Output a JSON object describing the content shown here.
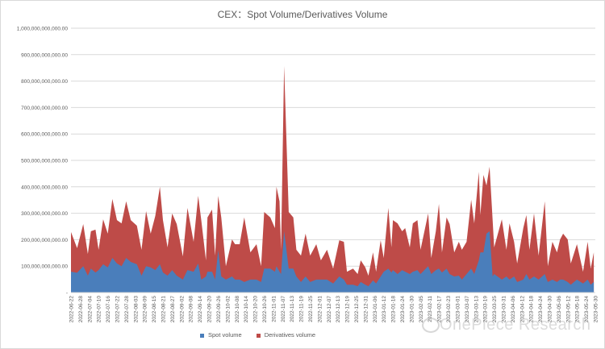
{
  "chart_data": {
    "type": "area",
    "stacked": true,
    "title": "CEX：Spot Volume/Derivatives Volume",
    "xlabel": "",
    "ylabel": "",
    "ylim": [
      0,
      1000000000000
    ],
    "grid": true,
    "legend_position": "bottom",
    "y_ticks": [
      "-",
      "100,000,000,000.00",
      "200,000,000,000.00",
      "300,000,000,000.00",
      "400,000,000,000.00",
      "500,000,000,000.00",
      "600,000,000,000.00",
      "700,000,000,000.00",
      "800,000,000,000.00",
      "900,000,000,000.00",
      "1,000,000,000,000.00"
    ],
    "x_ticks": [
      "2022-06-22",
      "2022-06-28",
      "2022-07-04",
      "2022-07-10",
      "2022-07-16",
      "2022-07-22",
      "2022-07-28",
      "2022-08-03",
      "2022-08-09",
      "2022-08-15",
      "2022-08-21",
      "2022-08-27",
      "2022-09-02",
      "2022-09-08",
      "2022-09-14",
      "2022-09-20",
      "2022-09-26",
      "2022-10-02",
      "2022-10-08",
      "2022-10-14",
      "2022-10-20",
      "2022-10-26",
      "2022-11-01",
      "2022-11-07",
      "2022-11-13",
      "2022-11-19",
      "2022-11-25",
      "2022-12-01",
      "2022-12-07",
      "2022-12-13",
      "2022-12-19",
      "2022-12-25",
      "2022-12-31",
      "2023-01-06",
      "2023-01-12",
      "2023-01-18",
      "2023-01-24",
      "2023-01-30",
      "2023-02-05",
      "2023-02-11",
      "2023-02-17",
      "2023-02-23",
      "2023-03-01",
      "2023-03-07",
      "2023-03-13",
      "2023-03-19",
      "2023-03-25",
      "2023-03-31",
      "2023-04-06",
      "2023-04-12",
      "2023-04-18",
      "2023-04-24",
      "2023-04-30",
      "2023-05-06",
      "2023-05-12",
      "2023-05-18",
      "2023-05-24",
      "2023-05-30"
    ],
    "x": [
      "2022-06-22",
      "2022-06-26",
      "2022-06-30",
      "2022-07-03",
      "2022-07-05",
      "2022-07-08",
      "2022-07-10",
      "2022-07-13",
      "2022-07-16",
      "2022-07-19",
      "2022-07-22",
      "2022-07-25",
      "2022-07-28",
      "2022-07-31",
      "2022-08-04",
      "2022-08-07",
      "2022-08-10",
      "2022-08-13",
      "2022-08-16",
      "2022-08-19",
      "2022-08-21",
      "2022-08-24",
      "2022-08-27",
      "2022-08-30",
      "2022-09-03",
      "2022-09-06",
      "2022-09-10",
      "2022-09-13",
      "2022-09-15",
      "2022-09-18",
      "2022-09-19",
      "2022-09-22",
      "2022-09-24",
      "2022-09-26",
      "2022-09-28",
      "2022-10-01",
      "2022-10-05",
      "2022-10-07",
      "2022-10-10",
      "2022-10-13",
      "2022-10-17",
      "2022-10-21",
      "2022-10-24",
      "2022-10-26",
      "2022-10-30",
      "2022-11-02",
      "2022-11-03",
      "2022-11-05",
      "2022-11-06",
      "2022-11-08",
      "2022-11-11",
      "2022-11-14",
      "2022-11-16",
      "2022-11-19",
      "2022-11-22",
      "2022-11-25",
      "2022-11-29",
      "2022-12-02",
      "2022-12-06",
      "2022-12-10",
      "2022-12-14",
      "2022-12-17",
      "2022-12-19",
      "2022-12-23",
      "2022-12-26",
      "2022-12-28",
      "2022-12-31",
      "2023-01-02",
      "2023-01-05",
      "2023-01-07",
      "2023-01-10",
      "2023-01-12",
      "2023-01-15",
      "2023-01-17",
      "2023-01-18",
      "2023-01-21",
      "2023-01-24",
      "2023-01-26",
      "2023-01-29",
      "2023-01-31",
      "2023-02-03",
      "2023-02-05",
      "2023-02-10",
      "2023-02-12",
      "2023-02-15",
      "2023-02-17",
      "2023-02-19",
      "2023-02-22",
      "2023-02-24",
      "2023-02-27",
      "2023-03-02",
      "2023-03-04",
      "2023-03-07",
      "2023-03-10",
      "2023-03-12",
      "2023-03-15",
      "2023-03-16",
      "2023-03-18",
      "2023-03-20",
      "2023-03-22",
      "2023-03-24",
      "2023-03-25",
      "2023-03-30",
      "2023-04-02",
      "2023-04-04",
      "2023-04-07",
      "2023-04-09",
      "2023-04-13",
      "2023-04-15",
      "2023-04-17",
      "2023-04-20",
      "2023-04-23",
      "2023-04-27",
      "2023-04-29",
      "2023-05-02",
      "2023-05-05",
      "2023-05-07",
      "2023-05-09",
      "2023-05-12",
      "2023-05-14",
      "2023-05-18",
      "2023-05-22",
      "2023-05-25",
      "2023-05-27",
      "2023-05-29"
    ],
    "series": [
      {
        "name": "Spot volume",
        "color": "#4a7ebb",
        "values": [
          79000000000.0,
          75000000000.0,
          100000000000.0,
          64000000000.0,
          91000000000.0,
          76000000000.0,
          85000000000.0,
          107000000000.0,
          95000000000.0,
          131000000000.0,
          110000000000.0,
          100000000000.0,
          131000000000.0,
          116000000000.0,
          107000000000.0,
          64000000000.0,
          100000000000.0,
          95000000000.0,
          85000000000.0,
          107000000000.0,
          76000000000.0,
          64000000000.0,
          85000000000.0,
          64000000000.0,
          49000000000.0,
          85000000000.0,
          79000000000.0,
          110000000000.0,
          49000000000.0,
          61000000000.0,
          79000000000.0,
          79000000000.0,
          49000000000.0,
          160000000000.0,
          61000000000.0,
          49000000000.0,
          61000000000.0,
          49000000000.0,
          49000000000.0,
          40000000000.0,
          49000000000.0,
          49000000000.0,
          40000000000.0,
          91000000000.0,
          91000000000.0,
          79000000000.0,
          100000000000.0,
          79000000000.0,
          70000000000.0,
          232000000000.0,
          91000000000.0,
          91000000000.0,
          61000000000.0,
          40000000000.0,
          61000000000.0,
          40000000000.0,
          49000000000.0,
          49000000000.0,
          49000000000.0,
          34000000000.0,
          61000000000.0,
          49000000000.0,
          30000000000.0,
          30000000000.0,
          24000000000.0,
          40000000000.0,
          30000000000.0,
          24000000000.0,
          46000000000.0,
          34000000000.0,
          61000000000.0,
          79000000000.0,
          91000000000.0,
          76000000000.0,
          85000000000.0,
          70000000000.0,
          85000000000.0,
          79000000000.0,
          70000000000.0,
          79000000000.0,
          85000000000.0,
          70000000000.0,
          100000000000.0,
          70000000000.0,
          85000000000.0,
          91000000000.0,
          76000000000.0,
          91000000000.0,
          70000000000.0,
          61000000000.0,
          64000000000.0,
          49000000000.0,
          70000000000.0,
          91000000000.0,
          70000000000.0,
          122000000000.0,
          152000000000.0,
          152000000000.0,
          223000000000.0,
          232000000000.0,
          61000000000.0,
          70000000000.0,
          49000000000.0,
          61000000000.0,
          49000000000.0,
          61000000000.0,
          40000000000.0,
          49000000000.0,
          70000000000.0,
          49000000000.0,
          61000000000.0,
          49000000000.0,
          70000000000.0,
          40000000000.0,
          49000000000.0,
          40000000000.0,
          49000000000.0,
          49000000000.0,
          40000000000.0,
          30000000000.0,
          49000000000.0,
          34000000000.0,
          49000000000.0,
          30000000000.0,
          40000000000.0
        ]
      },
      {
        "name": "Derivatives volume",
        "color": "#be4b48",
        "values": [
          150000000000.0,
          93000000000.0,
          159000000000.0,
          82000000000.0,
          141000000000.0,
          162000000000.0,
          77000000000.0,
          170000000000.0,
          128000000000.0,
          223000000000.0,
          164000000000.0,
          162000000000.0,
          214000000000.0,
          158000000000.0,
          146000000000.0,
          98000000000.0,
          208000000000.0,
          128000000000.0,
          205000000000.0,
          293000000000.0,
          198000000000.0,
          107000000000.0,
          214000000000.0,
          195000000000.0,
          88000000000.0,
          235000000000.0,
          113000000000.0,
          256000000000.0,
          225000000000.0,
          61000000000.0,
          205000000000.0,
          235000000000.0,
          91000000000.0,
          206000000000.0,
          223000000000.0,
          51000000000.0,
          140000000000.0,
          134000000000.0,
          134000000000.0,
          244000000000.0,
          103000000000.0,
          134000000000.0,
          60000000000.0,
          214000000000.0,
          193000000000.0,
          165000000000.0,
          300000000000.0,
          266000000000.0,
          92000000000.0,
          625000000000.0,
          214000000000.0,
          193000000000.0,
          101000000000.0,
          100000000000.0,
          162000000000.0,
          100000000000.0,
          134000000000.0,
          73000000000.0,
          113000000000.0,
          57000000000.0,
          137000000000.0,
          143000000000.0,
          49000000000.0,
          61000000000.0,
          46000000000.0,
          82000000000.0,
          65000000000.0,
          40000000000.0,
          106000000000.0,
          45000000000.0,
          137000000000.0,
          52000000000.0,
          229000000000.0,
          95000000000.0,
          189000000000.0,
          192000000000.0,
          147000000000.0,
          165000000000.0,
          101000000000.0,
          183000000000.0,
          189000000000.0,
          92000000000.0,
          199000000000.0,
          61000000000.0,
          147000000000.0,
          244000000000.0,
          76000000000.0,
          193000000000.0,
          189000000000.0,
          91000000000.0,
          128000000000.0,
          113000000000.0,
          122000000000.0,
          260000000000.0,
          192000000000.0,
          335000000000.0,
          141000000000.0,
          293000000000.0,
          182000000000.0,
          244000000000.0,
          213000000000.0,
          101000000000.0,
          228000000000.0,
          101000000000.0,
          213000000000.0,
          131000000000.0,
          70000000000.0,
          195000000000.0,
          223000000000.0,
          113000000000.0,
          238000000000.0,
          91000000000.0,
          275000000000.0,
          60000000000.0,
          143000000000.0,
          112000000000.0,
          152000000000.0,
          174000000000.0,
          161000000000.0,
          80000000000.0,
          134000000000.0,
          45000000000.0,
          143000000000.0,
          61000000000.0,
          112000000000.0
        ]
      }
    ]
  },
  "watermark": "OnePiece Research"
}
